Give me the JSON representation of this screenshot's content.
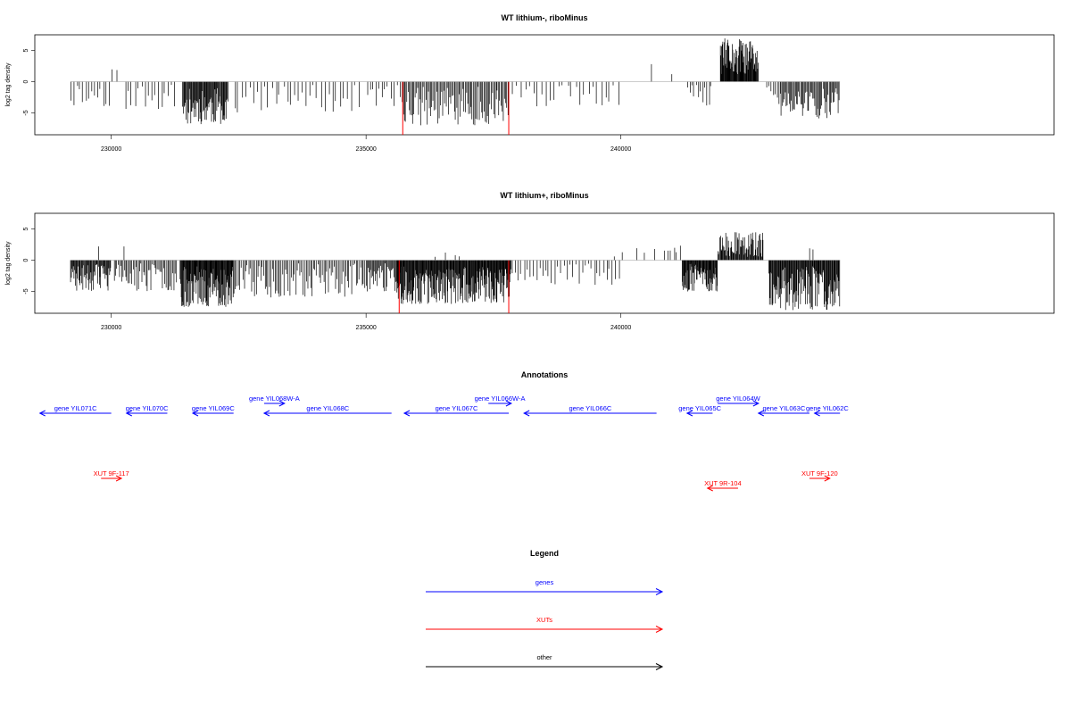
{
  "chart_data": [
    {
      "type": "bar",
      "title": "WT lithium-, riboMinus",
      "xlabel": "",
      "ylabel": "log2 tag density",
      "xlim": [
        228500,
        248500
      ],
      "ylim": [
        -8.5,
        7.5
      ],
      "x_ticks": [
        230000,
        235000,
        240000
      ],
      "y_ticks": [
        -5,
        0,
        5
      ],
      "y_tick_labels": [
        "-5",
        "0",
        "5"
      ],
      "x_tick_labels": [
        "230000",
        "235000",
        "240000"
      ],
      "seed": 11,
      "segments": [
        {
          "x0": 229200,
          "x1": 230000,
          "n": 14,
          "lo": -4,
          "hi": 0
        },
        {
          "x0": 230000,
          "x1": 230150,
          "n": 2,
          "lo": 1.5,
          "hi": 2
        },
        {
          "x0": 230250,
          "x1": 231300,
          "n": 16,
          "lo": -4.5,
          "hi": -0.5
        },
        {
          "x0": 231400,
          "x1": 232300,
          "n": 70,
          "lo": -6.8,
          "hi": -1
        },
        {
          "x0": 232400,
          "x1": 234900,
          "n": 34,
          "lo": -5,
          "hi": -0.5
        },
        {
          "x0": 235000,
          "x1": 235700,
          "n": 12,
          "lo": -4,
          "hi": -0.5
        },
        {
          "x0": 235700,
          "x1": 237800,
          "n": 90,
          "lo": -7,
          "hi": -0.8
        },
        {
          "x0": 237850,
          "x1": 240000,
          "n": 26,
          "lo": -4,
          "hi": -0.5
        },
        {
          "x0": 240600,
          "x1": 240650,
          "n": 1,
          "lo": 2.8,
          "hi": 2.8
        },
        {
          "x0": 241000,
          "x1": 241050,
          "n": 1,
          "lo": 1.2,
          "hi": 1.2
        },
        {
          "x0": 241300,
          "x1": 241800,
          "n": 12,
          "lo": -4,
          "hi": -0.5
        },
        {
          "x0": 241950,
          "x1": 242700,
          "n": 80,
          "lo": 1,
          "hi": 7
        },
        {
          "x0": 242850,
          "x1": 243100,
          "n": 6,
          "lo": -3,
          "hi": -0.5
        },
        {
          "x0": 243100,
          "x1": 244300,
          "n": 60,
          "lo": -6,
          "hi": -1
        }
      ],
      "highlights": [
        {
          "x": 235720,
          "y": -8.5,
          "color": "#ff0000"
        },
        {
          "x": 237800,
          "y": -8.5,
          "color": "#ff0000"
        }
      ]
    },
    {
      "type": "bar",
      "title": "WT lithium+, riboMinus",
      "xlabel": "",
      "ylabel": "log2 tag density",
      "xlim": [
        228500,
        248500
      ],
      "ylim": [
        -8.5,
        7.5
      ],
      "x_ticks": [
        230000,
        235000,
        240000
      ],
      "y_ticks": [
        -5,
        0,
        5
      ],
      "y_tick_labels": [
        "-5",
        "0",
        "5"
      ],
      "x_tick_labels": [
        "230000",
        "235000",
        "240000"
      ],
      "seed": 23,
      "segments": [
        {
          "x0": 229200,
          "x1": 230000,
          "n": 60,
          "lo": -5,
          "hi": -0.5
        },
        {
          "x0": 229750,
          "x1": 229800,
          "n": 1,
          "lo": 2.2,
          "hi": 2.2
        },
        {
          "x0": 230250,
          "x1": 230300,
          "n": 1,
          "lo": 2.2,
          "hi": 2.2
        },
        {
          "x0": 230050,
          "x1": 231300,
          "n": 50,
          "lo": -5,
          "hi": -0.5
        },
        {
          "x0": 231350,
          "x1": 232400,
          "n": 110,
          "lo": -7.5,
          "hi": -1
        },
        {
          "x0": 232400,
          "x1": 235000,
          "n": 90,
          "lo": -6,
          "hi": -0.5
        },
        {
          "x0": 235000,
          "x1": 235700,
          "n": 40,
          "lo": -5,
          "hi": -0.5
        },
        {
          "x0": 235600,
          "x1": 237850,
          "n": 220,
          "lo": -7,
          "hi": -1
        },
        {
          "x0": 236300,
          "x1": 237000,
          "n": 4,
          "lo": 0.5,
          "hi": 1.5
        },
        {
          "x0": 237850,
          "x1": 240000,
          "n": 36,
          "lo": -4,
          "hi": -0.5
        },
        {
          "x0": 239800,
          "x1": 240800,
          "n": 5,
          "lo": 0.5,
          "hi": 2
        },
        {
          "x0": 240850,
          "x1": 241200,
          "n": 6,
          "lo": 0.5,
          "hi": 2.5
        },
        {
          "x0": 241200,
          "x1": 241900,
          "n": 70,
          "lo": -5,
          "hi": -0.5
        },
        {
          "x0": 241900,
          "x1": 242800,
          "n": 70,
          "lo": 0.5,
          "hi": 4.5
        },
        {
          "x0": 242900,
          "x1": 244300,
          "n": 120,
          "lo": -8,
          "hi": -1
        },
        {
          "x0": 243700,
          "x1": 243800,
          "n": 2,
          "lo": 1.5,
          "hi": 2.4
        }
      ],
      "highlights": [
        {
          "x": 235650,
          "y": -8.5,
          "color": "#ff0000"
        },
        {
          "x": 237800,
          "y": -8.5,
          "color": "#ff0000"
        }
      ]
    }
  ],
  "annotations": {
    "title": "Annotations",
    "xlim": [
      228500,
      248500
    ],
    "genes": [
      {
        "label": "gene YIL071C",
        "start": 230000,
        "end": 228600,
        "strand": "-",
        "color": "#0000ff",
        "row": 1
      },
      {
        "label": "gene YIL070C",
        "start": 231100,
        "end": 230300,
        "strand": "-",
        "color": "#0000ff",
        "row": 1
      },
      {
        "label": "gene YIL069C",
        "start": 232400,
        "end": 231600,
        "strand": "-",
        "color": "#0000ff",
        "row": 1
      },
      {
        "label": "gene YIL068W-A",
        "start": 233000,
        "end": 233400,
        "strand": "+",
        "color": "#0000ff",
        "row": 0
      },
      {
        "label": "gene YIL068C",
        "start": 235500,
        "end": 233000,
        "strand": "-",
        "color": "#0000ff",
        "row": 1
      },
      {
        "label": "gene YIL067C",
        "start": 237800,
        "end": 235750,
        "strand": "-",
        "color": "#0000ff",
        "row": 1
      },
      {
        "label": "gene YIL066W-A",
        "start": 237400,
        "end": 237850,
        "strand": "+",
        "color": "#0000ff",
        "row": 0
      },
      {
        "label": "gene YIL066C",
        "start": 240700,
        "end": 238100,
        "strand": "-",
        "color": "#0000ff",
        "row": 1
      },
      {
        "label": "gene YIL065C",
        "start": 241800,
        "end": 241300,
        "strand": "-",
        "color": "#0000ff",
        "row": 1
      },
      {
        "label": "gene YIL064W",
        "start": 241900,
        "end": 242700,
        "strand": "+",
        "color": "#0000ff",
        "row": 0
      },
      {
        "label": "gene YIL063C",
        "start": 243700,
        "end": 242700,
        "strand": "-",
        "color": "#0000ff",
        "row": 1
      },
      {
        "label": "gene YIL062C",
        "start": 244300,
        "end": 243800,
        "strand": "-",
        "color": "#0000ff",
        "row": 1
      },
      {
        "label": "XUT 9F-117",
        "start": 229800,
        "end": 230200,
        "strand": "+",
        "color": "#ff0000",
        "row": 2
      },
      {
        "label": "XUT 9R-104",
        "start": 242300,
        "end": 241700,
        "strand": "-",
        "color": "#ff0000",
        "row": 3
      },
      {
        "label": "XUT 9F-120",
        "start": 243700,
        "end": 244100,
        "strand": "+",
        "color": "#ff0000",
        "row": 2
      }
    ]
  },
  "legend": {
    "title": "Legend",
    "items": [
      {
        "label": "genes",
        "color": "#0000ff"
      },
      {
        "label": "XUTs",
        "color": "#ff0000"
      },
      {
        "label": "other",
        "color": "#000000"
      }
    ]
  }
}
